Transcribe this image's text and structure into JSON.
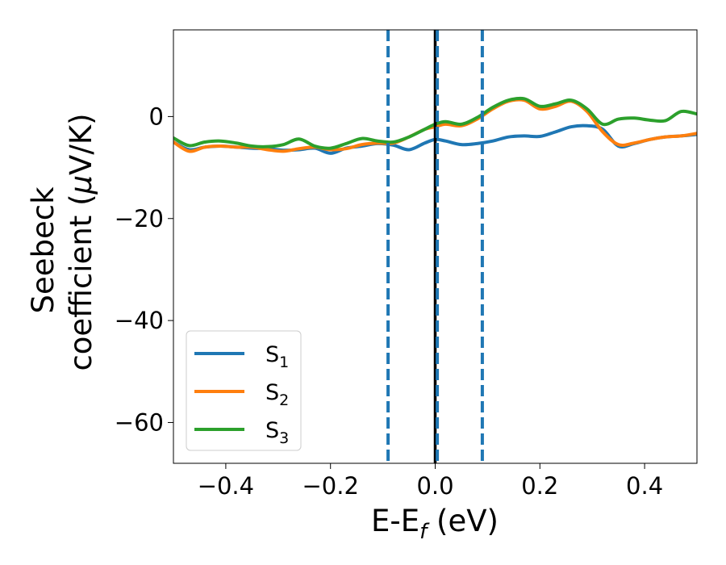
{
  "chart_data": {
    "type": "line",
    "xlabel": {
      "main": "E-E",
      "sub": "f",
      "suffix": " (eV)"
    },
    "ylabel": {
      "line1": "Seebeck",
      "line2_prefix": "coefficient  (",
      "mu": "μ",
      "line2_suffix": "V/K)"
    },
    "xlim": [
      -0.5,
      0.5
    ],
    "ylim": [
      -68,
      17
    ],
    "xticks": [
      -0.4,
      -0.2,
      0.0,
      0.2,
      0.4
    ],
    "xtick_labels": [
      "−0.4",
      "−0.2",
      "0.0",
      "0.2",
      "0.4"
    ],
    "yticks": [
      -60,
      -40,
      -20,
      0
    ],
    "ytick_labels": [
      "−60",
      "−40",
      "−20",
      "0"
    ],
    "grid": false,
    "legend": {
      "placement": "lower-left"
    },
    "vlines": [
      {
        "x": -0.09,
        "style": "dashed",
        "color": "#1f77b4"
      },
      {
        "x": 0.09,
        "style": "dashed",
        "color": "#1f77b4"
      },
      {
        "x": 0.0,
        "style": "solid",
        "color": "#000000"
      },
      {
        "x": 0.004,
        "style": "dashed",
        "color": "#1f77b4"
      }
    ],
    "series": [
      {
        "name": "S",
        "sub": "1",
        "color": "#1f77b4",
        "x": [
          -0.5,
          -0.47,
          -0.44,
          -0.41,
          -0.38,
          -0.35,
          -0.32,
          -0.29,
          -0.26,
          -0.23,
          -0.2,
          -0.17,
          -0.14,
          -0.11,
          -0.08,
          -0.05,
          -0.02,
          0.0,
          0.02,
          0.05,
          0.08,
          0.11,
          0.14,
          0.17,
          0.2,
          0.23,
          0.26,
          0.29,
          0.32,
          0.35,
          0.38,
          0.41,
          0.44,
          0.47,
          0.5
        ],
        "y": [
          -5,
          -6.5,
          -6,
          -5.8,
          -6,
          -6.2,
          -6.3,
          -6.6,
          -6.5,
          -6.2,
          -7.2,
          -6.2,
          -5.8,
          -5.3,
          -5.6,
          -6.5,
          -5.2,
          -4.5,
          -4.8,
          -5.5,
          -5.3,
          -4.8,
          -4,
          -3.8,
          -3.9,
          -3,
          -2,
          -1.8,
          -2.5,
          -5.8,
          -5.3,
          -4.5,
          -4,
          -3.8,
          -3.5
        ]
      },
      {
        "name": "S",
        "sub": "2",
        "color": "#ff7f0e",
        "x": [
          -0.5,
          -0.47,
          -0.44,
          -0.41,
          -0.38,
          -0.35,
          -0.32,
          -0.29,
          -0.26,
          -0.23,
          -0.2,
          -0.17,
          -0.14,
          -0.11,
          -0.08,
          -0.05,
          -0.02,
          0.0,
          0.02,
          0.05,
          0.08,
          0.11,
          0.14,
          0.17,
          0.2,
          0.23,
          0.26,
          0.29,
          0.32,
          0.35,
          0.38,
          0.41,
          0.44,
          0.47,
          0.5
        ],
        "y": [
          -5,
          -6.8,
          -6,
          -5.8,
          -6,
          -6,
          -6.5,
          -6.8,
          -6.3,
          -6,
          -6.5,
          -6.3,
          -5.5,
          -5.2,
          -5.2,
          -4,
          -2.5,
          -2,
          -1.5,
          -1.8,
          -0.5,
          1.5,
          3,
          3.2,
          1.5,
          2,
          3,
          1,
          -3,
          -5.5,
          -5.2,
          -4.5,
          -4,
          -3.8,
          -3.3
        ]
      },
      {
        "name": "S",
        "sub": "3",
        "color": "#2ca02c",
        "x": [
          -0.5,
          -0.47,
          -0.44,
          -0.41,
          -0.38,
          -0.35,
          -0.32,
          -0.29,
          -0.26,
          -0.23,
          -0.2,
          -0.17,
          -0.14,
          -0.11,
          -0.08,
          -0.05,
          -0.02,
          0.0,
          0.02,
          0.05,
          0.08,
          0.11,
          0.14,
          0.17,
          0.2,
          0.23,
          0.26,
          0.29,
          0.32,
          0.35,
          0.38,
          0.41,
          0.44,
          0.47,
          0.5
        ],
        "y": [
          -4.2,
          -5.7,
          -5,
          -4.8,
          -5.2,
          -5.8,
          -5.9,
          -5.5,
          -4.4,
          -5.8,
          -6.2,
          -5.3,
          -4.3,
          -4.8,
          -5,
          -4,
          -2.5,
          -1.5,
          -1,
          -1.5,
          -0.2,
          1.8,
          3.2,
          3.5,
          2,
          2.5,
          3.2,
          1.5,
          -1.5,
          -0.5,
          -0.3,
          -0.7,
          -0.8,
          1,
          0.5
        ]
      }
    ]
  }
}
